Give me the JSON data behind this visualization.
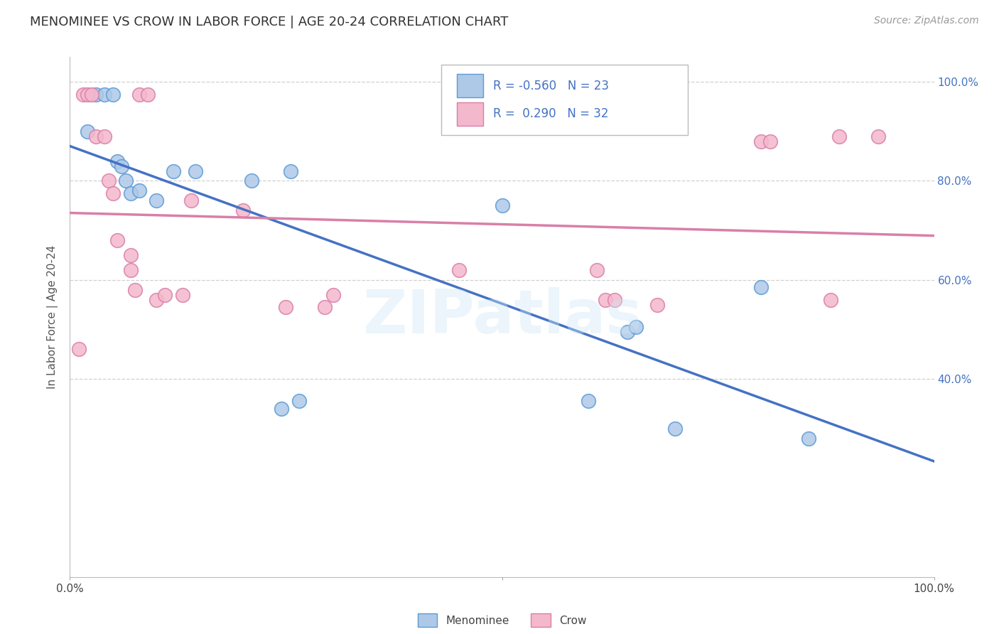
{
  "title": "MENOMINEE VS CROW IN LABOR FORCE | AGE 20-24 CORRELATION CHART",
  "source": "Source: ZipAtlas.com",
  "ylabel": "In Labor Force | Age 20-24",
  "R1": "-0.560",
  "N1": "23",
  "R2": "0.290",
  "N2": "32",
  "watermark": "ZIPatlas",
  "menominee_color": "#aec8e8",
  "menominee_edge_color": "#5b9bd5",
  "crow_color": "#f4b8cc",
  "crow_edge_color": "#d97fa8",
  "menominee_line_color": "#4472c4",
  "crow_line_color": "#d97fa8",
  "menominee_x": [
    0.02,
    0.03,
    0.04,
    0.05,
    0.055,
    0.06,
    0.065,
    0.07,
    0.08,
    0.1,
    0.12,
    0.145,
    0.21,
    0.245,
    0.255,
    0.265,
    0.5,
    0.6,
    0.645,
    0.655,
    0.7,
    0.8,
    0.855
  ],
  "menominee_y": [
    0.9,
    0.975,
    0.975,
    0.975,
    0.84,
    0.83,
    0.8,
    0.775,
    0.78,
    0.76,
    0.82,
    0.82,
    0.8,
    0.34,
    0.82,
    0.355,
    0.75,
    0.355,
    0.495,
    0.505,
    0.3,
    0.585,
    0.28
  ],
  "crow_x": [
    0.01,
    0.015,
    0.02,
    0.025,
    0.03,
    0.04,
    0.045,
    0.05,
    0.055,
    0.07,
    0.07,
    0.075,
    0.08,
    0.09,
    0.1,
    0.11,
    0.13,
    0.14,
    0.2,
    0.25,
    0.295,
    0.305,
    0.45,
    0.61,
    0.62,
    0.63,
    0.68,
    0.8,
    0.81,
    0.88,
    0.89,
    0.935
  ],
  "crow_y": [
    0.46,
    0.975,
    0.975,
    0.975,
    0.89,
    0.89,
    0.8,
    0.775,
    0.68,
    0.65,
    0.62,
    0.58,
    0.975,
    0.975,
    0.56,
    0.57,
    0.57,
    0.76,
    0.74,
    0.545,
    0.545,
    0.57,
    0.62,
    0.62,
    0.56,
    0.56,
    0.55,
    0.88,
    0.88,
    0.56,
    0.89,
    0.89
  ],
  "grid_color": "#d0d0d0",
  "background_color": "#ffffff",
  "title_fontsize": 13,
  "axis_fontsize": 11,
  "legend_fontsize": 12,
  "ytick_vals": [
    0.4,
    0.6,
    0.8,
    1.0
  ],
  "ytick_labels": [
    "40.0%",
    "60.0%",
    "80.0%",
    "100.0%"
  ],
  "ymin": 0.0,
  "ymax": 1.05,
  "xmin": 0.0,
  "xmax": 1.0,
  "legend_label1": "Menominee",
  "legend_label2": "Crow"
}
